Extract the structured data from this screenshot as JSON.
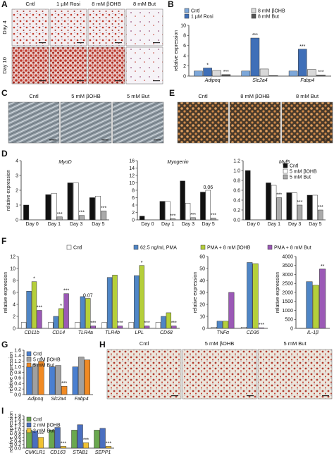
{
  "panel_letters": [
    "A",
    "B",
    "C",
    "D",
    "E",
    "F",
    "G",
    "H",
    "I"
  ],
  "image_panels": {
    "A": {
      "columns": [
        "Cntl",
        "1 µM Rosi",
        "8 mM βOHB",
        "8 mM But"
      ],
      "rows": [
        "Day 4",
        "Day 10"
      ]
    },
    "C": {
      "columns": [
        "Cntl",
        "5 mM βOHB",
        "5 mM But"
      ]
    },
    "E": {
      "columns": [
        "Cntl",
        "8 mM βOHB",
        "8 mM But"
      ]
    },
    "H": {
      "columns": [
        "Cntl",
        "5 mM βOHB",
        "5 mM But"
      ]
    }
  },
  "chart_data": [
    {
      "type": "bar",
      "ylabel": "relative expression",
      "categories": [
        "Adipoq",
        "Slc2a4",
        "Fabp4"
      ],
      "ylim": [
        0,
        10
      ],
      "yticks": [
        0,
        2,
        4,
        6,
        8,
        10
      ],
      "legend": "top",
      "series": [
        {
          "name": "Cntl",
          "color": "#7da7d9",
          "values": [
            1,
            1,
            1
          ]
        },
        {
          "name": "1 µM Rosi",
          "color": "#3f6fb8",
          "values": [
            1.6,
            7.5,
            5.3
          ],
          "significance": [
            "*",
            "***",
            "***"
          ]
        },
        {
          "name": "8 mM βOHB",
          "color": "#d9d9d9",
          "values": [
            1.1,
            1.4,
            1.3
          ]
        },
        {
          "name": "8 mM But",
          "color": "#555555",
          "values": [
            0.3,
            0.1,
            0.2
          ],
          "significance": [
            "***",
            null,
            "***"
          ]
        }
      ]
    },
    {
      "type": "bar",
      "title": "MyoD",
      "ylabel": "relative expression",
      "categories": [
        "Day 0",
        "Day 1",
        "Day 3",
        "Day 5"
      ],
      "ylim": [
        0,
        4
      ],
      "yticks": [
        0,
        1,
        2,
        3,
        4
      ],
      "series": [
        {
          "color": "#111111",
          "values": [
            1,
            1.7,
            2.5,
            1.5
          ]
        },
        {
          "color": "#ffffff",
          "values": [
            null,
            1.8,
            2.5,
            1.6
          ]
        },
        {
          "color": "#aaaaaa",
          "values": [
            null,
            0.2,
            0.3,
            0.6
          ],
          "significance": [
            null,
            "***",
            "***",
            "***"
          ]
        }
      ]
    },
    {
      "type": "bar",
      "title": "Myogenin",
      "categories": [
        "Day 0",
        "Day 1",
        "Day 3",
        "Day 5"
      ],
      "ylim": [
        0,
        16
      ],
      "yticks": [
        0,
        2,
        4,
        6,
        8,
        10,
        12,
        14,
        16
      ],
      "series": [
        {
          "color": "#111111",
          "values": [
            1,
            5,
            10.5,
            7.5
          ]
        },
        {
          "color": "#ffffff",
          "values": [
            null,
            5,
            4.5,
            8
          ],
          "significance": [
            null,
            null,
            null,
            "0.06"
          ]
        },
        {
          "color": "#aaaaaa",
          "values": [
            null,
            0.3,
            0.6,
            0.5
          ],
          "significance": [
            null,
            "***",
            "***",
            "***"
          ]
        }
      ]
    },
    {
      "type": "bar",
      "title": "Myf5",
      "categories": [
        "Day 0",
        "Day 1",
        "Day 3",
        "Day 5"
      ],
      "ylim": [
        0,
        1.2
      ],
      "yticks": [
        {
          "value": 0,
          "label": "0.0"
        },
        0.2,
        0.4,
        0.6,
        0.8,
        {
          "value": 1,
          "label": "1.0"
        },
        1.2
      ],
      "legend": "upper right",
      "series": [
        {
          "name": "Cntl",
          "color": "#111111",
          "values": [
            1,
            0.75,
            0.55,
            0.5
          ]
        },
        {
          "name": "5 mM βOHB",
          "color": "#ffffff",
          "values": [
            null,
            0.7,
            0.55,
            0.5
          ]
        },
        {
          "name": "5 mM But",
          "color": "#aaaaaa",
          "values": [
            null,
            0.45,
            0.3,
            0.2
          ],
          "significance": [
            null,
            "***",
            "***",
            "***"
          ]
        }
      ]
    },
    {
      "type": "bar",
      "ylabel": "relative expression",
      "categories": [
        "CD11b",
        "CD14",
        "TLR4a",
        "TLR4b",
        "LPL",
        "CD68"
      ],
      "ylim": [
        0,
        12
      ],
      "yticks": [
        0,
        2,
        4,
        6,
        8,
        10,
        12
      ],
      "legend": "top",
      "series": [
        {
          "name": "Cntl",
          "color": "#ffffff",
          "values": [
            1,
            1,
            1,
            1,
            1,
            1
          ]
        },
        {
          "name": "62.5 ng/mL PMA",
          "color": "#4f86c6",
          "values": [
            6.2,
            2.0,
            5.3,
            8.5,
            8.8,
            2.0
          ]
        },
        {
          "name": "PMA + 8 mM βOHB",
          "color": "#b5cf3a",
          "values": [
            7.8,
            3.3,
            5.0,
            8.9,
            10.5,
            2.6
          ],
          "significance": [
            "*",
            "*",
            "0.07",
            null,
            "*",
            null
          ]
        },
        {
          "name": "PMA + 8 mM But",
          "color": "#9b59b6",
          "values": [
            3.0,
            5.8,
            0.4,
            0.4,
            0.4,
            0.4
          ],
          "significance": [
            "***",
            "***",
            "***",
            "***",
            "***",
            "***"
          ]
        }
      ]
    },
    {
      "type": "bar",
      "ylabel": "relative expression",
      "categories": [
        "TNFα",
        "CD36"
      ],
      "ylim": [
        0,
        60
      ],
      "yticks": [
        0,
        10,
        20,
        30,
        40,
        50,
        60
      ],
      "series": [
        {
          "color": "#ffffff",
          "values": [
            1,
            1
          ]
        },
        {
          "color": "#4f86c6",
          "values": [
            6,
            55
          ]
        },
        {
          "color": "#b5cf3a",
          "values": [
            6,
            54
          ]
        },
        {
          "color": "#9b59b6",
          "values": [
            30,
            0.5
          ],
          "significance": [
            null,
            "***"
          ]
        }
      ]
    },
    {
      "type": "bar",
      "ylabel": "relative expression",
      "categories": [
        "IL-1β"
      ],
      "ylim": [
        0,
        4000
      ],
      "yticks": [
        0,
        500,
        1000,
        1500,
        2000,
        2500,
        3000,
        3500,
        4000
      ],
      "series": [
        {
          "color": "#ffffff",
          "values": [
            1
          ]
        },
        {
          "color": "#4f86c6",
          "values": [
            2600
          ]
        },
        {
          "color": "#b5cf3a",
          "values": [
            2400
          ]
        },
        {
          "color": "#9b59b6",
          "values": [
            3300
          ],
          "significance": [
            "**"
          ]
        }
      ]
    },
    {
      "type": "bar",
      "ylabel": "relative expression",
      "categories": [
        "Adipoq",
        "Slc2a4",
        "Fabp4"
      ],
      "ylim": [
        0,
        1.6
      ],
      "yticks": [
        {
          "value": 0,
          "label": "0.0"
        },
        0.2,
        0.4,
        0.6,
        0.8,
        {
          "value": 1,
          "label": "1.0"
        },
        1.2,
        1.4,
        1.6
      ],
      "legend": "upper left",
      "series": [
        {
          "name": "Cntl",
          "color": "#4a7fd0",
          "values": [
            1,
            1,
            1
          ]
        },
        {
          "name": "5 mM βOHB",
          "color": "#a0a0a0",
          "values": [
            1.1,
            1.05,
            1.35
          ]
        },
        {
          "name": "5 mM But",
          "color": "#f08a24",
          "values": [
            1.2,
            0.3,
            1.25
          ],
          "significance": [
            "*",
            "***",
            null
          ]
        }
      ]
    },
    {
      "type": "bar",
      "ylabel": "relative expression",
      "categories": [
        "CMKLR1",
        "CD163",
        "STAB1",
        "SEPP1"
      ],
      "ylim": [
        0,
        1.8
      ],
      "yticks": [
        {
          "value": 0,
          "label": "0.0"
        },
        0.2,
        0.4,
        0.6,
        0.8,
        {
          "value": 1,
          "label": "1.0"
        },
        1.2,
        1.4,
        1.6,
        1.8
      ],
      "legend": "upper left",
      "series": [
        {
          "name": "Cntl",
          "color": "#6aa84f",
          "values": [
            1,
            1,
            1,
            1
          ]
        },
        {
          "name": "2 mM βOHB",
          "color": "#4a6fc0",
          "values": [
            0.95,
            1.15,
            1.3,
            1.1
          ]
        },
        {
          "name": "2 mM But",
          "color": "#f1c232",
          "values": [
            0.6,
            0.1,
            0.3,
            0.1
          ],
          "significance": [
            "***",
            "***",
            "***",
            "***"
          ]
        }
      ]
    }
  ]
}
